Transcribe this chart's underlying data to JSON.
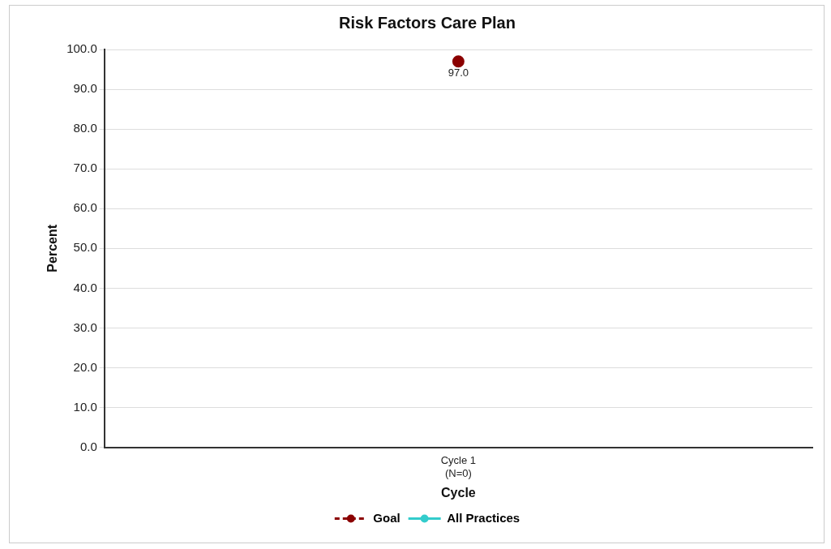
{
  "chart_data": {
    "type": "line",
    "title": "Risk Factors Care Plan",
    "xlabel": "Cycle",
    "ylabel": "Percent",
    "categories": [
      "Cycle 1\n(N=0)"
    ],
    "series": [
      {
        "name": "Goal",
        "color": "#8b0000",
        "values": [
          97
        ],
        "value_labels": [
          "97.0"
        ],
        "line_style": "dashed"
      },
      {
        "name": "All Practices",
        "color": "#33cccc",
        "values": [
          null
        ],
        "line_style": "solid"
      }
    ],
    "ylim": [
      0,
      100
    ],
    "yticks": [
      {
        "value": 0,
        "label": "0.0"
      },
      {
        "value": 10,
        "label": "10.0"
      },
      {
        "value": 20,
        "label": "20.0"
      },
      {
        "value": 30,
        "label": "30.0"
      },
      {
        "value": 40,
        "label": "40.0"
      },
      {
        "value": 50,
        "label": "50.0"
      },
      {
        "value": 60,
        "label": "60.0"
      },
      {
        "value": 70,
        "label": "70.0"
      },
      {
        "value": 80,
        "label": "80.0"
      },
      {
        "value": 90,
        "label": "90.0"
      },
      {
        "value": 100,
        "label": "100.0"
      }
    ],
    "grid": "y",
    "legend": "bottom",
    "marker": "circle"
  }
}
